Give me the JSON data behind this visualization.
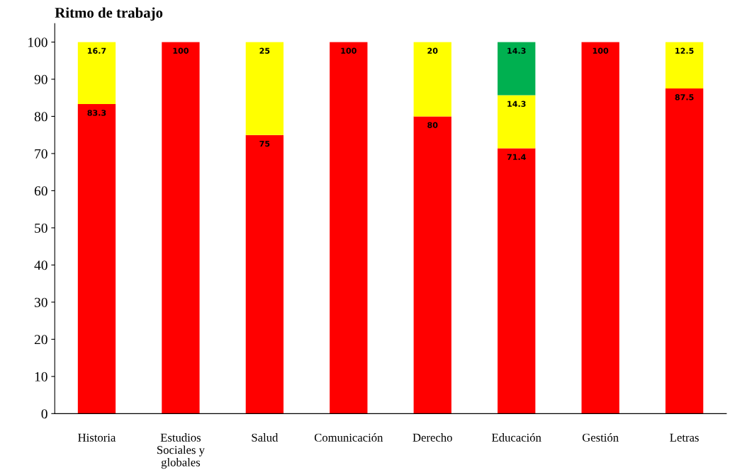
{
  "chart_data": {
    "type": "bar",
    "title": "Ritmo de trabajo",
    "stacked": true,
    "categories": [
      "Historia",
      "Estudios Sociales y globales",
      "Salud",
      "Comunicación",
      "Derecho",
      "Educación",
      "Gestión",
      "Letras"
    ],
    "series": [
      {
        "color": "#ff0000",
        "values": [
          83.3,
          100,
          75,
          100,
          80,
          71.4,
          100,
          87.5
        ]
      },
      {
        "color": "#ffff00",
        "values": [
          16.7,
          null,
          25,
          null,
          20,
          14.3,
          null,
          12.5
        ]
      },
      {
        "color": "#00b050",
        "values": [
          null,
          null,
          null,
          null,
          null,
          14.3,
          null,
          null
        ]
      }
    ],
    "ylim": [
      0,
      105
    ],
    "yticks": [
      0,
      10,
      20,
      30,
      40,
      50,
      60,
      70,
      80,
      90,
      100
    ],
    "data_labels": true,
    "grid": false
  }
}
